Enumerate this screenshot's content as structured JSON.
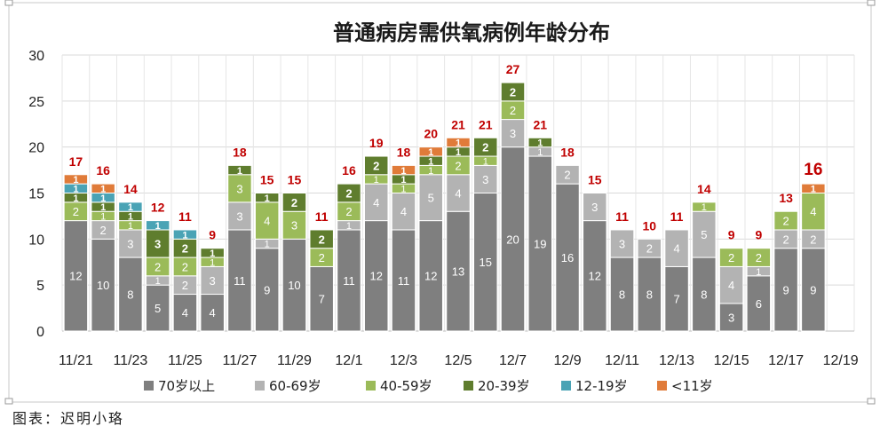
{
  "chart_data": {
    "type": "bar",
    "stacked": true,
    "title": "普通病房需供氧病例年龄分布",
    "xlabel": "",
    "ylabel": "",
    "ylim": [
      0,
      30
    ],
    "yticks": [
      0,
      5,
      10,
      15,
      20,
      25,
      30
    ],
    "grid": true,
    "legend_position": "bottom",
    "categories": [
      "11/21",
      "11/22",
      "11/23",
      "11/24",
      "11/25",
      "11/26",
      "11/27",
      "11/28",
      "11/29",
      "11/30",
      "12/1",
      "12/2",
      "12/3",
      "12/4",
      "12/5",
      "12/6",
      "12/7",
      "12/8",
      "12/9",
      "12/10",
      "12/11",
      "12/12",
      "12/13",
      "12/14",
      "12/15",
      "12/16",
      "12/17",
      "12/18",
      "12/19"
    ],
    "x_tick_labels": [
      "11/21",
      "11/23",
      "11/25",
      "11/27",
      "11/29",
      "12/1",
      "12/3",
      "12/5",
      "12/7",
      "12/9",
      "12/11",
      "12/13",
      "12/15",
      "12/17",
      "12/19"
    ],
    "series": [
      {
        "name": "70岁以上",
        "color": "#7f7f7f",
        "values": [
          12,
          10,
          8,
          5,
          4,
          4,
          11,
          9,
          10,
          7,
          11,
          12,
          11,
          12,
          13,
          15,
          20,
          19,
          16,
          12,
          8,
          8,
          7,
          8,
          3,
          6,
          9,
          9,
          0
        ]
      },
      {
        "name": "60-69岁",
        "color": "#b3b3b3",
        "values": [
          0,
          2,
          3,
          1,
          2,
          3,
          3,
          1,
          0,
          0,
          1,
          4,
          4,
          5,
          4,
          3,
          3,
          1,
          2,
          3,
          3,
          2,
          4,
          5,
          4,
          1,
          2,
          2,
          0
        ]
      },
      {
        "name": "40-59岁",
        "color": "#9bbb59",
        "values": [
          2,
          1,
          1,
          2,
          2,
          1,
          3,
          4,
          3,
          2,
          2,
          1,
          1,
          1,
          2,
          1,
          2,
          0,
          0,
          0,
          0,
          0,
          0,
          1,
          2,
          2,
          2,
          4,
          0
        ]
      },
      {
        "name": "20-39岁",
        "color": "#5f7d2e",
        "values": [
          1,
          1,
          1,
          3,
          2,
          1,
          1,
          1,
          2,
          2,
          2,
          2,
          1,
          1,
          1,
          2,
          2,
          1,
          0,
          0,
          0,
          0,
          0,
          0,
          0,
          0,
          0,
          0,
          0
        ]
      },
      {
        "name": "12-19岁",
        "color": "#4aa3b5",
        "values": [
          1,
          1,
          1,
          1,
          1,
          0,
          0,
          0,
          0,
          0,
          0,
          0,
          0,
          0,
          0,
          0,
          0,
          0,
          0,
          0,
          0,
          0,
          0,
          0,
          0,
          0,
          0,
          0,
          0
        ]
      },
      {
        "name": "<11岁",
        "color": "#e07b39",
        "values": [
          1,
          1,
          0,
          0,
          0,
          0,
          0,
          0,
          0,
          0,
          0,
          0,
          1,
          1,
          1,
          0,
          0,
          0,
          0,
          0,
          0,
          0,
          0,
          0,
          0,
          0,
          0,
          1,
          0
        ]
      }
    ],
    "totals": [
      17,
      16,
      14,
      12,
      11,
      9,
      18,
      15,
      15,
      11,
      16,
      19,
      18,
      20,
      21,
      21,
      27,
      21,
      18,
      15,
      11,
      10,
      11,
      14,
      9,
      9,
      13,
      16,
      null
    ],
    "total_label_color": "#c00000"
  },
  "caption": "图表：迟明小珞"
}
